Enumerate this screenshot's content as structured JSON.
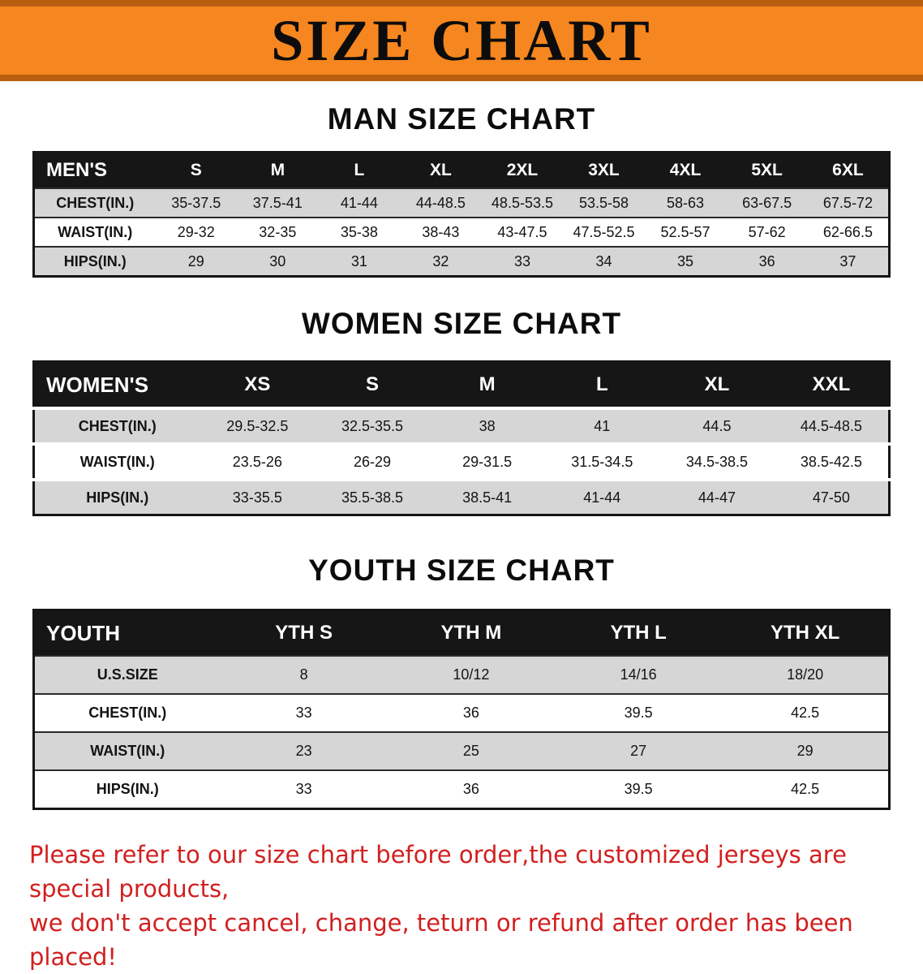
{
  "banner": {
    "title": "SIZE CHART"
  },
  "colors": {
    "accent_orange": "#f6861f",
    "accent_orange_dark": "#b85e10",
    "table_header_bg": "#161616",
    "row_shade": "#d6d6d6",
    "note_red": "#d21f1f"
  },
  "sections": [
    {
      "heading": "MAN SIZE CHART",
      "table": {
        "corner": "MEN'S",
        "columns": [
          "S",
          "M",
          "L",
          "XL",
          "2XL",
          "3XL",
          "4XL",
          "5XL",
          "6XL"
        ],
        "rows": [
          {
            "label": "CHEST(IN.)",
            "values": [
              "35-37.5",
              "37.5-41",
              "41-44",
              "44-48.5",
              "48.5-53.5",
              "53.5-58",
              "58-63",
              "63-67.5",
              "67.5-72"
            ]
          },
          {
            "label": "WAIST(IN.)",
            "values": [
              "29-32",
              "32-35",
              "35-38",
              "38-43",
              "43-47.5",
              "47.5-52.5",
              "52.5-57",
              "57-62",
              "62-66.5"
            ]
          },
          {
            "label": "HIPS(IN.)",
            "values": [
              "29",
              "30",
              "31",
              "32",
              "33",
              "34",
              "35",
              "36",
              "37"
            ]
          }
        ]
      }
    },
    {
      "heading": "WOMEN SIZE CHART",
      "table": {
        "corner": "WOMEN'S",
        "columns": [
          "XS",
          "S",
          "M",
          "L",
          "XL",
          "XXL"
        ],
        "rows": [
          {
            "label": "CHEST(IN.)",
            "values": [
              "29.5-32.5",
              "32.5-35.5",
              "38",
              "41",
              "44.5",
              "44.5-48.5"
            ]
          },
          {
            "label": "WAIST(IN.)",
            "values": [
              "23.5-26",
              "26-29",
              "29-31.5",
              "31.5-34.5",
              "34.5-38.5",
              "38.5-42.5"
            ]
          },
          {
            "label": "HIPS(IN.)",
            "values": [
              "33-35.5",
              "35.5-38.5",
              "38.5-41",
              "41-44",
              "44-47",
              "47-50"
            ]
          }
        ]
      }
    },
    {
      "heading": "YOUTH SIZE CHART",
      "table": {
        "corner": "YOUTH",
        "columns": [
          "YTH S",
          "YTH M",
          "YTH L",
          "YTH XL"
        ],
        "rows": [
          {
            "label": "U.S.SIZE",
            "values": [
              "8",
              "10/12",
              "14/16",
              "18/20"
            ]
          },
          {
            "label": "CHEST(IN.)",
            "values": [
              "33",
              "36",
              "39.5",
              "42.5"
            ]
          },
          {
            "label": "WAIST(IN.)",
            "values": [
              "23",
              "25",
              "27",
              "29"
            ]
          },
          {
            "label": "HIPS(IN.)",
            "values": [
              "33",
              "36",
              "39.5",
              "42.5"
            ]
          }
        ]
      }
    }
  ],
  "footer": {
    "line1": "Please refer to our size chart before order,the customized jerseys are special products,",
    "line2": "we don't accept cancel, change, teturn or refund after order has been placed!"
  }
}
